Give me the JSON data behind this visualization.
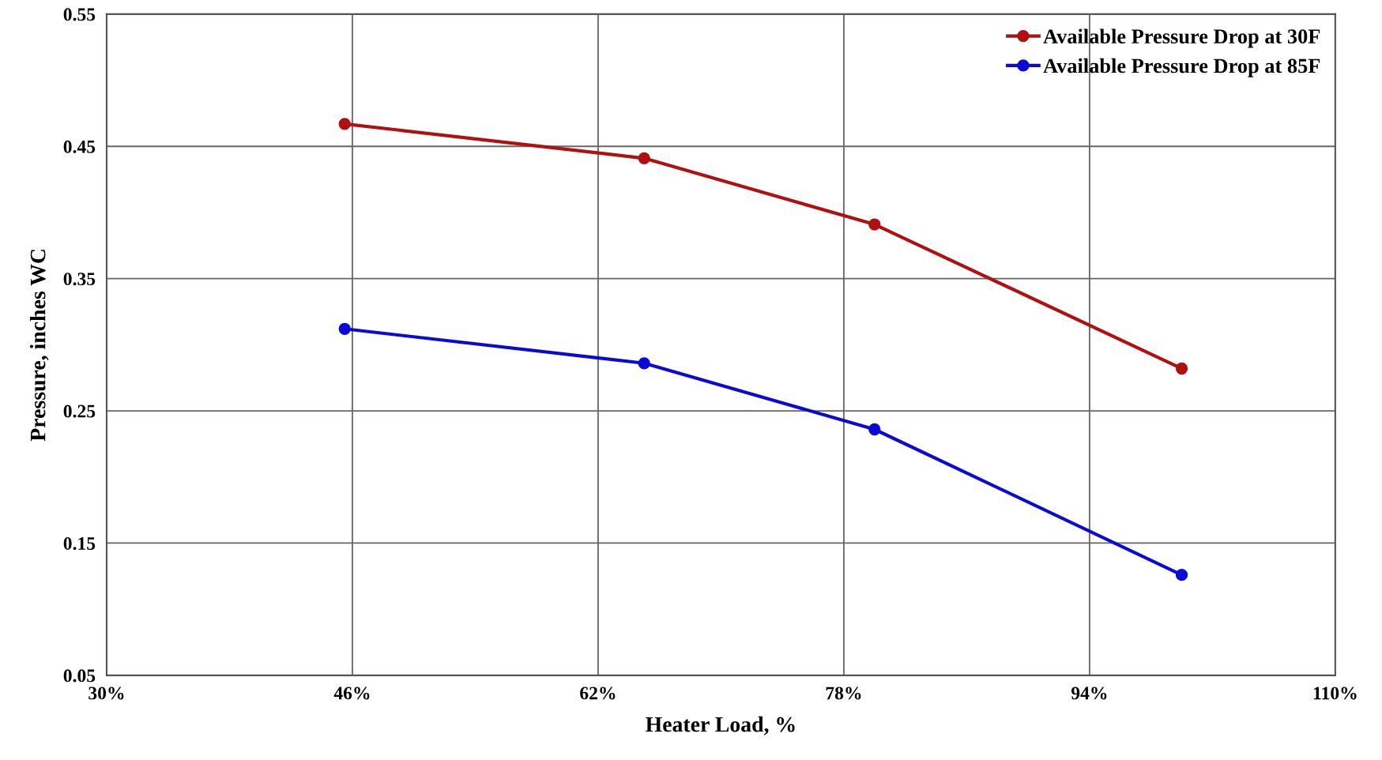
{
  "chart_data": {
    "type": "line",
    "xlabel": "Heater Load, %",
    "ylabel": "Pressure, inches WC",
    "x": [
      45.5,
      65,
      80,
      100
    ],
    "series": [
      {
        "name": "Available Pressure Drop at 30F",
        "color": "#b01010",
        "values": [
          0.467,
          0.441,
          0.391,
          0.282
        ]
      },
      {
        "name": "Available Pressure Drop at 85F",
        "color": "#0a0ad8",
        "values": [
          0.312,
          0.286,
          0.236,
          0.126
        ]
      }
    ],
    "xlim": [
      30,
      110
    ],
    "xticks": [
      {
        "value": 30,
        "label": "30%"
      },
      {
        "value": 46,
        "label": "46%"
      },
      {
        "value": 62,
        "label": "62%"
      },
      {
        "value": 78,
        "label": "78%"
      },
      {
        "value": 94,
        "label": "94%"
      },
      {
        "value": 110,
        "label": "110%"
      }
    ],
    "ylim": [
      0.05,
      0.55
    ],
    "yticks": [
      {
        "value": 0.05,
        "label": "0.05"
      },
      {
        "value": 0.15,
        "label": "0.15"
      },
      {
        "value": 0.25,
        "label": "0.25"
      },
      {
        "value": 0.35,
        "label": "0.35"
      },
      {
        "value": 0.45,
        "label": "0.45"
      },
      {
        "value": 0.55,
        "label": "0.55"
      }
    ],
    "grid": true,
    "legend": "top right",
    "marker": "circle",
    "line_style": "solid"
  }
}
